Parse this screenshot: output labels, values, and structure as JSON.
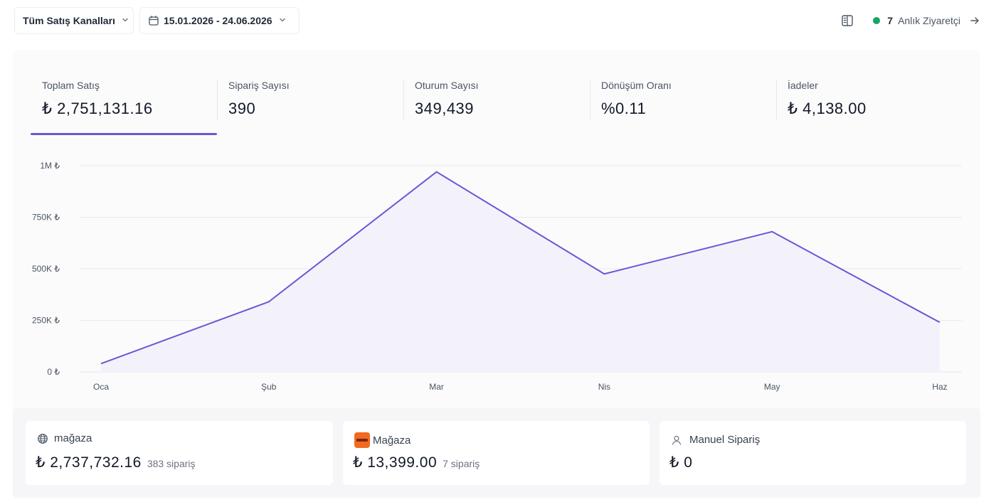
{
  "filters": {
    "channel_label": "Tüm Satış Kanalları",
    "date_range": "15.01.2026 - 24.06.2026"
  },
  "live": {
    "count": "7",
    "label": "Anlık Ziyaretçi",
    "dot_color": "#19a463"
  },
  "metrics": [
    {
      "label": "Toplam Satış",
      "value": "₺ 2,751,131.16"
    },
    {
      "label": "Sipariş Sayısı",
      "value": "390"
    },
    {
      "label": "Oturum Sayısı",
      "value": "349,439"
    },
    {
      "label": "Dönüşüm Oranı",
      "value": "%0.11"
    },
    {
      "label": "İadeler",
      "value": "₺ 4,138.00"
    }
  ],
  "chart_data": {
    "type": "area",
    "categories": [
      "Oca",
      "Şub",
      "Mar",
      "Nis",
      "May",
      "Haz"
    ],
    "values": [
      40000,
      340000,
      970000,
      475000,
      680000,
      240000
    ],
    "ylim": [
      0,
      1000000
    ],
    "yticks": [
      "0 ₺",
      "250K ₺",
      "500K ₺",
      "750K ₺",
      "1M ₺"
    ],
    "ytick_values": [
      0,
      250000,
      500000,
      750000,
      1000000
    ],
    "line_color": "#6b56d6",
    "fill_color": "#f3f2fb",
    "grid": true
  },
  "channels": [
    {
      "name": "mağaza",
      "amount": "₺ 2,737,732.16",
      "orders": "383 sipariş",
      "icon": "globe-icon"
    },
    {
      "name": "Mağaza",
      "amount": "₺ 13,399.00",
      "orders": "7 sipariş",
      "icon": "store-logo-icon"
    },
    {
      "name": "Manuel Sipariş",
      "amount": "₺ 0",
      "orders": "",
      "icon": "person-icon"
    }
  ]
}
